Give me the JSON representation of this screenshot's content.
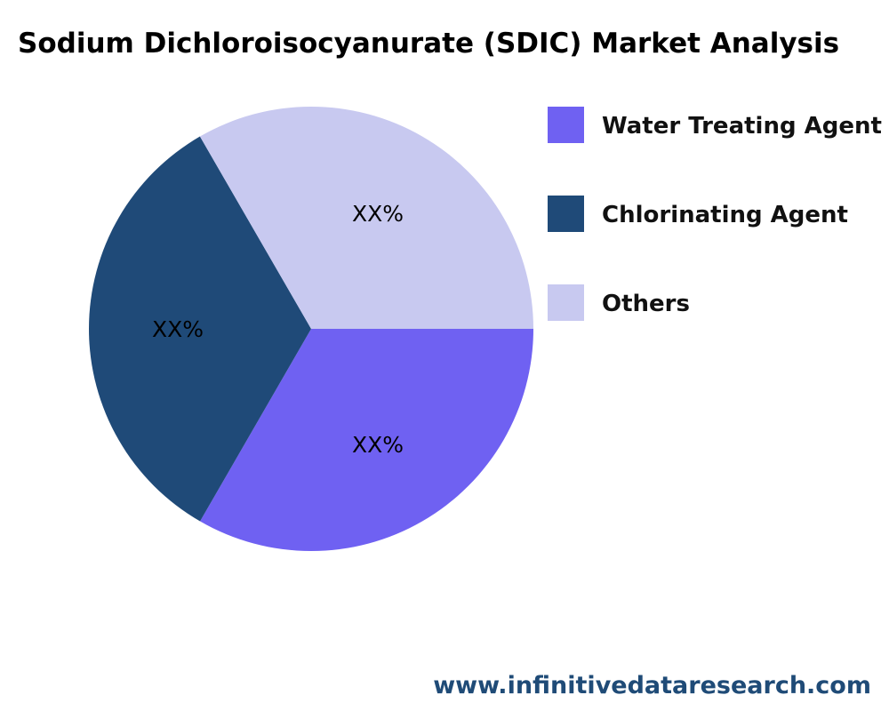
{
  "chart_data": {
    "type": "pie",
    "title": "Sodium Dichloroisocyanurate (SDIC) Market Analysis",
    "categories": [
      "Water Treating Agent",
      "Chlorinating Agent",
      "Others"
    ],
    "values": [
      33.33,
      33.33,
      33.34
    ],
    "data_labels": [
      "XX%",
      "XX%",
      "XX%"
    ],
    "colors": [
      "#6f61f2",
      "#1f4a78",
      "#c8c9f0"
    ],
    "legend_position": "right"
  },
  "footer": {
    "website": "www.infinitivedataresearch.com"
  }
}
